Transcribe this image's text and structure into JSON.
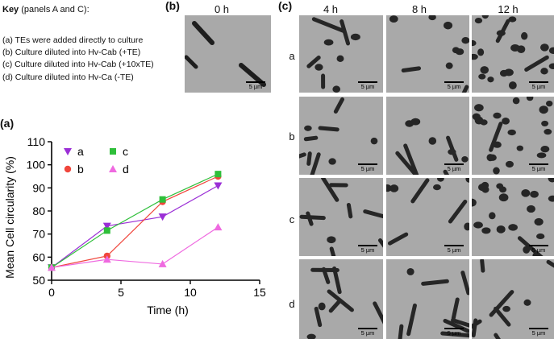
{
  "key": {
    "title_bold": "Key",
    "title_rest": " (panels A and C):",
    "items": [
      "(a) TEs were added directly to culture",
      "(b) Culture diluted into Hv-Cab (+TE)",
      "(c) Culture diluted into Hv-Cab (+10xTE)",
      "(d) Culture diluted into Hv-Ca (-TE)"
    ]
  },
  "panels": {
    "a": "(a)",
    "b": "(b)",
    "c": "(c)"
  },
  "panel_b": {
    "time": "0 h",
    "scale": "5 µm"
  },
  "panel_c": {
    "times": [
      "4 h",
      "8 h",
      "12 h"
    ],
    "rows": [
      "a",
      "b",
      "c",
      "d"
    ],
    "scale": "5 µm"
  },
  "chart_data": {
    "type": "line",
    "xlabel": "Time (h)",
    "ylabel": "Mean Cell circularity (%)",
    "xlim": [
      0,
      15
    ],
    "ylim": [
      50,
      110
    ],
    "xticks": [
      0,
      5,
      10,
      15
    ],
    "yticks": [
      50,
      60,
      70,
      80,
      90,
      100,
      110
    ],
    "legend_position": "top-left",
    "grid": false,
    "series": [
      {
        "name": "a",
        "color": "#9b2fd6",
        "marker": "triangle-down",
        "x": [
          0,
          4,
          8,
          12
        ],
        "y": [
          55.5,
          73.5,
          77.5,
          91
        ]
      },
      {
        "name": "b",
        "color": "#f0463c",
        "marker": "circle",
        "x": [
          0,
          4,
          8,
          12
        ],
        "y": [
          55.5,
          60.5,
          84,
          95
        ]
      },
      {
        "name": "c",
        "color": "#2fbf3a",
        "marker": "square",
        "x": [
          0,
          4,
          8,
          12
        ],
        "y": [
          55.5,
          71.5,
          85,
          96
        ]
      },
      {
        "name": "d",
        "color": "#ef6ae0",
        "marker": "triangle-up",
        "x": [
          0,
          4,
          8,
          12
        ],
        "y": [
          55.5,
          59,
          57,
          73
        ]
      }
    ]
  }
}
